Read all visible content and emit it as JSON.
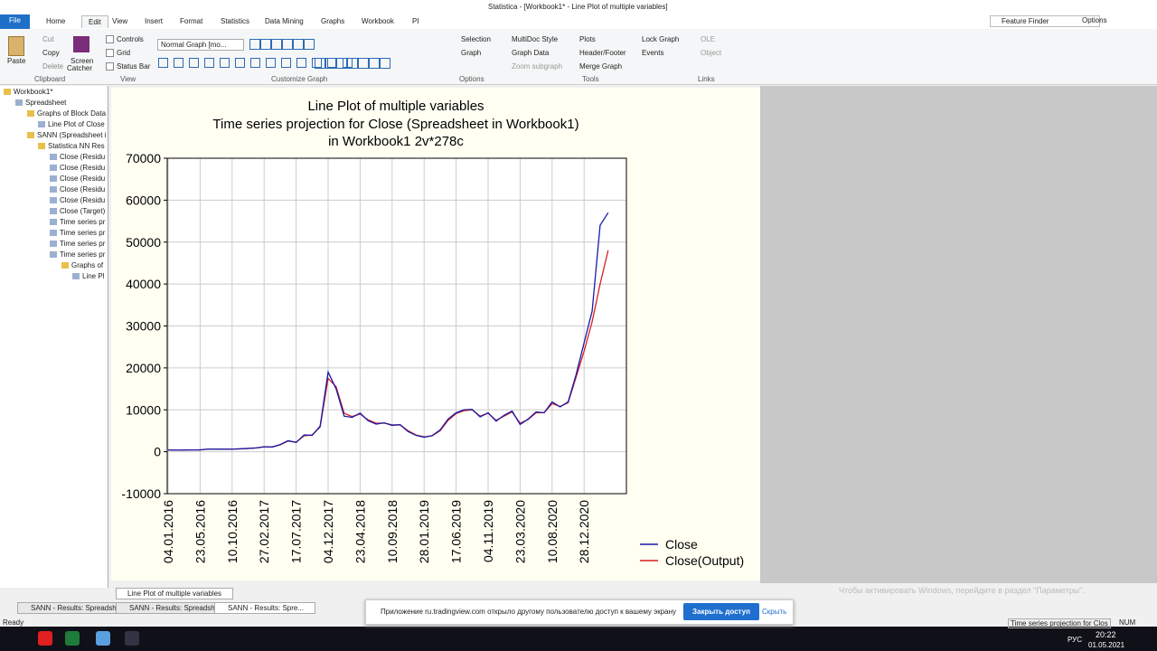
{
  "window": {
    "title": "Statistica - [Workbook1* - Line Plot of multiple variables]"
  },
  "ribbon": {
    "tabs": [
      "File",
      "Home",
      "Edit",
      "View",
      "Insert",
      "Format",
      "Statistics",
      "Data Mining",
      "Graphs",
      "Workbook",
      "PI"
    ],
    "search": "Feature Finder",
    "options": "Options",
    "clipboard": [
      "Paste",
      "Cut",
      "Copy",
      "Delete",
      "Screen",
      "Catcher"
    ],
    "view": [
      "Controls",
      "Grid",
      "Status Bar"
    ],
    "graph_mode": "Normal Graph [mo...",
    "options_group": [
      "Selection",
      "Graph"
    ],
    "tools": [
      "MultiDoc Style",
      "Graph Data",
      "Zoom subgraph",
      "Plots",
      "Header/Footer",
      "Merge Graph",
      "Lock Graph",
      "Events"
    ],
    "links": [
      "OLE",
      "Object"
    ],
    "groups": [
      "Clipboard",
      "View",
      "Customize Graph",
      "Options",
      "Tools",
      "Links"
    ]
  },
  "tree": [
    "Workbook1*",
    "Spreadsheet",
    "Graphs of Block Data",
    "Line Plot of Close",
    "SANN (Spreadsheet i",
    "Statistica NN Res",
    "Close (Residu",
    "Close (Residu",
    "Close (Residu",
    "Close (Residu",
    "Close (Residu",
    "Close (Target)",
    "Time series pr",
    "Time series pr",
    "Time series pr",
    "Time series pr",
    "Graphs of",
    "Line Pl"
  ],
  "chart_data": {
    "type": "line",
    "title": "Line Plot of multiple variables",
    "subtitle": [
      "Time series projection for Close (Spreadsheet in Workbook1)",
      "in Workbook1 2v*278c"
    ],
    "categories": [
      "04.01.2016",
      null,
      null,
      null,
      "23.05.2016",
      null,
      null,
      null,
      "10.10.2016",
      null,
      null,
      null,
      "27.02.2017",
      null,
      null,
      null,
      "17.07.2017",
      null,
      null,
      null,
      "04.12.2017",
      null,
      null,
      null,
      "23.04.2018",
      null,
      null,
      null,
      "10.09.2018",
      null,
      null,
      null,
      "28.01.2019",
      null,
      null,
      null,
      "17.06.2019",
      null,
      null,
      null,
      "04.11.2019",
      null,
      null,
      null,
      "23.03.2020",
      null,
      null,
      null,
      "10.08.2020",
      null,
      null,
      null,
      "28.12.2020",
      null,
      null,
      null
    ],
    "series": [
      {
        "name": "Close",
        "color": "#1a1aa8",
        "values": [
          430,
          380,
          415,
          430,
          440,
          650,
          610,
          605,
          615,
          700,
          790,
          920,
          1190,
          1120,
          1700,
          2650,
          2200,
          4000,
          3900,
          6100,
          19000,
          15000,
          8500,
          8200,
          9200,
          7400,
          6600,
          6900,
          6300,
          6450,
          4800,
          3900,
          3450,
          3850,
          5200,
          7800,
          9300,
          10000,
          10100,
          8300,
          9300,
          7300,
          8700,
          9700,
          6500,
          7800,
          9500,
          9300,
          11900,
          10700,
          11900,
          18400,
          26000,
          33500,
          54000,
          57000
        ]
      },
      {
        "name": "Close(Output)",
        "color": "#d42020",
        "values": [
          440,
          400,
          410,
          425,
          445,
          620,
          620,
          610,
          615,
          690,
          780,
          900,
          1150,
          1150,
          1650,
          2550,
          2300,
          3800,
          4000,
          5900,
          17500,
          15500,
          9200,
          8400,
          9000,
          7600,
          6800,
          6850,
          6400,
          6400,
          5000,
          4000,
          3550,
          3800,
          5000,
          7500,
          9100,
          9800,
          10000,
          8500,
          9200,
          7500,
          8500,
          9500,
          6800,
          7700,
          9300,
          9300,
          11500,
          10800,
          11700,
          17800,
          24000,
          31000,
          40000,
          48000
        ]
      }
    ],
    "ylim": [
      -10000,
      70000
    ],
    "yticks": [
      -10000,
      0,
      10000,
      20000,
      30000,
      40000,
      50000,
      60000,
      70000
    ],
    "grid": true,
    "legend": "bottom-right"
  },
  "bottom_tab": "Line Plot of multiple variables",
  "task_tabs": [
    "SANN - Results: Spreadsh...",
    "SANN - Results: Spreadsh...",
    "SANN - Results: Spre..."
  ],
  "notification": {
    "text": "Приложение ru.tradingview.com открыло другому пользователю доступ к вашему экрану",
    "button": "Закрыть доступ",
    "hide": "Скрыть"
  },
  "watermark": "Чтобы активировать Windows, перейдите в раздел \"Параметры\".",
  "status": {
    "left": "Ready",
    "right": "Time series projection for Clos",
    "num": "NUM"
  },
  "taskbar": {
    "lang": "РУС",
    "time": "20:22",
    "date": "01.05.2021"
  }
}
